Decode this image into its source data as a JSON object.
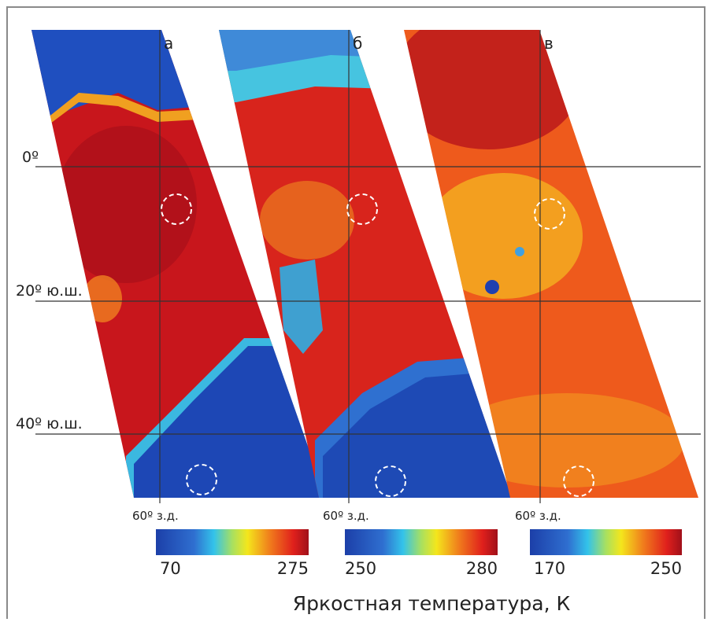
{
  "panels": [
    {
      "label": "а",
      "longitude_label": "60º з.д.",
      "colorbar": {
        "min": 70,
        "max": 275
      }
    },
    {
      "label": "б",
      "longitude_label": "60º з.д.",
      "colorbar": {
        "min": 250,
        "max": 280
      }
    },
    {
      "label": "в",
      "longitude_label": "60º з.д.",
      "colorbar": {
        "min": 170,
        "max": 250
      }
    }
  ],
  "latitude_labels": [
    "0º",
    "20º ю.ш.",
    "40º ю.ш."
  ],
  "caption": "Яркостная температура, К"
}
